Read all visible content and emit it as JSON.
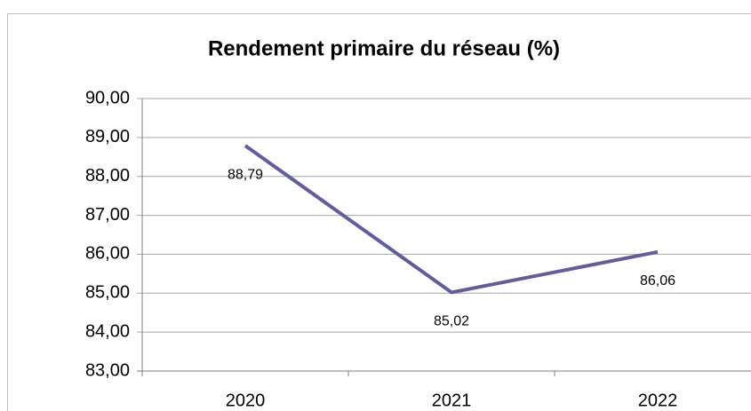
{
  "chart_data": {
    "type": "line",
    "title": "Rendement primaire du réseau (%)",
    "categories": [
      "2020",
      "2021",
      "2022"
    ],
    "values": [
      88.79,
      85.02,
      86.06
    ],
    "value_labels": [
      "88,79",
      "85,02",
      "86,06"
    ],
    "color": "#625e9a",
    "ylim": [
      83,
      90
    ],
    "yticks": [
      {
        "value": 83,
        "label": "83,00"
      },
      {
        "value": 84,
        "label": "84,00"
      },
      {
        "value": 85,
        "label": "85,00"
      },
      {
        "value": 86,
        "label": "86,00"
      },
      {
        "value": 87,
        "label": "87,00"
      },
      {
        "value": 88,
        "label": "88,00"
      },
      {
        "value": 89,
        "label": "89,00"
      },
      {
        "value": 90,
        "label": "90,00"
      }
    ],
    "grid": true
  }
}
